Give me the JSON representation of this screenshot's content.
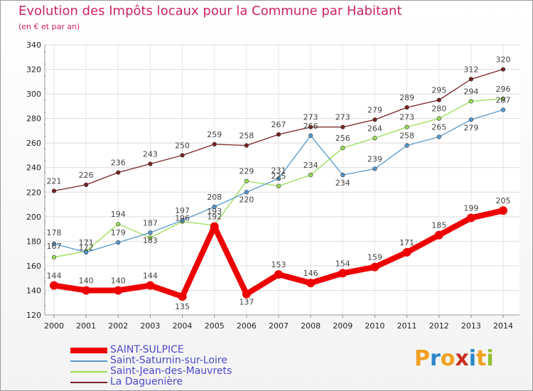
{
  "header": {
    "title": "Evolution des Impôts locaux pour la Commune par Habitant",
    "subtitle": "(en € et par an)"
  },
  "logo": {
    "letters": [
      "P",
      "r",
      "o",
      "x",
      "i",
      "t",
      "i"
    ],
    "colors": [
      "#f0a020",
      "#2a86c8",
      "#f0a020",
      "#c83020",
      "#2a86c8",
      "#f0a020",
      "#90c030"
    ]
  },
  "chart_data": {
    "type": "line",
    "title": "Evolution des Impôts locaux pour la Commune par Habitant",
    "subtitle": "(en € et par an)",
    "xlabel": "",
    "ylabel": "",
    "x": [
      2000,
      2001,
      2002,
      2003,
      2004,
      2005,
      2006,
      2007,
      2008,
      2009,
      2010,
      2011,
      2012,
      2013,
      2014
    ],
    "ylim": [
      120,
      340
    ],
    "yticks": [
      120,
      140,
      160,
      180,
      200,
      220,
      240,
      260,
      280,
      300,
      320,
      340
    ],
    "grid": true,
    "legend_position": "bottom-left",
    "series": [
      {
        "name": "SAINT-SULPICE",
        "color": "#ee0000",
        "emphasis": true,
        "values": [
          144,
          140,
          140,
          144,
          135,
          192,
          137,
          153,
          146,
          154,
          159,
          171,
          185,
          199,
          205
        ],
        "labels": [
          "144",
          "140",
          "140",
          "144",
          "135",
          "192",
          "137",
          "153",
          "146",
          "154",
          "159",
          "171",
          "185",
          "199",
          "205"
        ]
      },
      {
        "name": "Saint-Saturnin-sur-Loire",
        "color": "#5599cc",
        "emphasis": false,
        "values": [
          178,
          171,
          179,
          187,
          197,
          208,
          220,
          231,
          266,
          234,
          239,
          258,
          265,
          279,
          287
        ],
        "labels": [
          "178",
          "171",
          "179",
          "187",
          "197",
          "208",
          "220",
          "231",
          "266",
          "234",
          "239",
          "258",
          "265",
          "279",
          "287"
        ]
      },
      {
        "name": "Saint-Jean-des-Mauvrets",
        "color": "#99dd55",
        "emphasis": false,
        "values": [
          167,
          172,
          194,
          183,
          196,
          193,
          229,
          225,
          234,
          256,
          264,
          273,
          280,
          294,
          296
        ],
        "labels": [
          "167",
          "172",
          "194",
          "183",
          "196",
          "193",
          "229",
          "225",
          "234",
          "256",
          "264",
          "273",
          "280",
          "294",
          "296"
        ]
      },
      {
        "name": "La Daguenière",
        "color": "#772222",
        "emphasis": false,
        "values": [
          221,
          226,
          236,
          243,
          250,
          259,
          258,
          267,
          273,
          273,
          279,
          289,
          295,
          312,
          320
        ],
        "labels": [
          "221",
          "226",
          "236",
          "243",
          "250",
          "259",
          "258",
          "267",
          "273",
          "273",
          "279",
          "289",
          "295",
          "312",
          "320"
        ]
      }
    ]
  }
}
